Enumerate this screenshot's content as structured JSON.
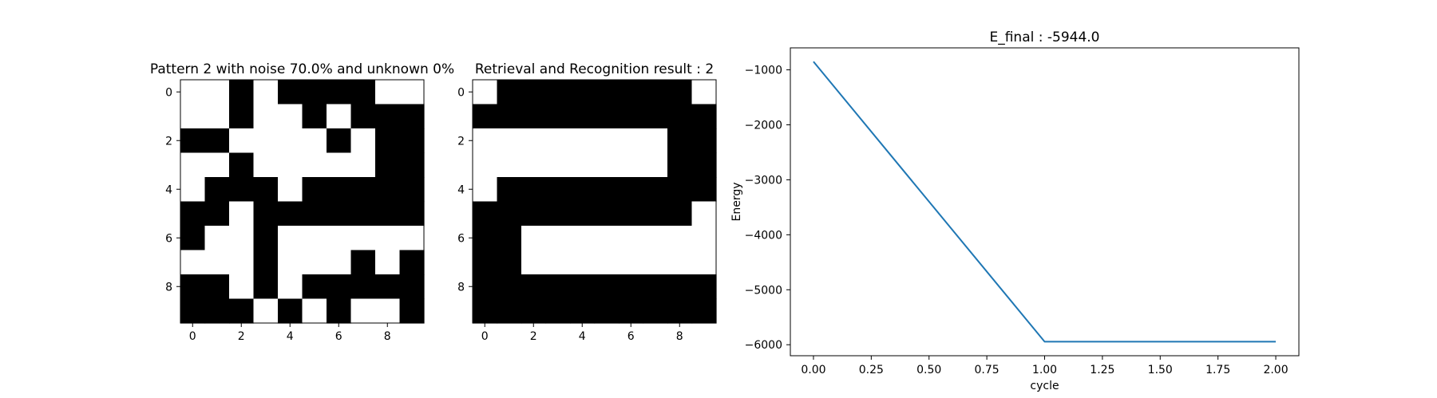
{
  "chart_data": [
    {
      "type": "heatmap",
      "title": "Pattern 2 with noise 70.0% and unknown 0%",
      "x_ticks": [
        0,
        2,
        4,
        6,
        8
      ],
      "y_ticks": [
        0,
        2,
        4,
        6,
        8
      ],
      "colormap": "gray",
      "cell_colors": {
        "1": "#ffffff",
        "0": "#000000"
      },
      "grid": [
        [
          1,
          1,
          0,
          1,
          0,
          0,
          0,
          0,
          1,
          1
        ],
        [
          1,
          1,
          0,
          1,
          1,
          0,
          1,
          0,
          0,
          0
        ],
        [
          0,
          0,
          1,
          1,
          1,
          1,
          0,
          1,
          0,
          0
        ],
        [
          1,
          1,
          0,
          1,
          1,
          1,
          1,
          1,
          0,
          0
        ],
        [
          1,
          0,
          0,
          0,
          1,
          0,
          0,
          0,
          0,
          0
        ],
        [
          0,
          0,
          1,
          0,
          0,
          0,
          0,
          0,
          0,
          0
        ],
        [
          0,
          1,
          1,
          0,
          1,
          1,
          1,
          1,
          1,
          1
        ],
        [
          1,
          1,
          1,
          0,
          1,
          1,
          1,
          0,
          1,
          0
        ],
        [
          0,
          0,
          1,
          0,
          1,
          0,
          0,
          0,
          0,
          0
        ],
        [
          0,
          0,
          0,
          1,
          0,
          1,
          0,
          1,
          1,
          0
        ]
      ]
    },
    {
      "type": "heatmap",
      "title": "Retrieval and Recognition result : 2",
      "x_ticks": [
        0,
        2,
        4,
        6,
        8
      ],
      "y_ticks": [
        0,
        2,
        4,
        6,
        8
      ],
      "colormap": "gray",
      "cell_colors": {
        "1": "#ffffff",
        "0": "#000000"
      },
      "grid": [
        [
          1,
          0,
          0,
          0,
          0,
          0,
          0,
          0,
          0,
          1
        ],
        [
          0,
          0,
          0,
          0,
          0,
          0,
          0,
          0,
          0,
          0
        ],
        [
          1,
          1,
          1,
          1,
          1,
          1,
          1,
          1,
          0,
          0
        ],
        [
          1,
          1,
          1,
          1,
          1,
          1,
          1,
          1,
          0,
          0
        ],
        [
          1,
          0,
          0,
          0,
          0,
          0,
          0,
          0,
          0,
          0
        ],
        [
          0,
          0,
          0,
          0,
          0,
          0,
          0,
          0,
          0,
          1
        ],
        [
          0,
          0,
          1,
          1,
          1,
          1,
          1,
          1,
          1,
          1
        ],
        [
          0,
          0,
          1,
          1,
          1,
          1,
          1,
          1,
          1,
          1
        ],
        [
          0,
          0,
          0,
          0,
          0,
          0,
          0,
          0,
          0,
          0
        ],
        [
          0,
          0,
          0,
          0,
          0,
          0,
          0,
          0,
          0,
          0
        ]
      ]
    },
    {
      "type": "line",
      "title": "E_final : -5944.0",
      "xlabel": "cycle",
      "ylabel": "Energy",
      "xlim": [
        -0.1,
        2.1
      ],
      "ylim": [
        -6200,
        -600
      ],
      "x_ticks": [
        0.0,
        0.25,
        0.5,
        0.75,
        1.0,
        1.25,
        1.5,
        1.75,
        2.0
      ],
      "x_tick_labels": [
        "0.00",
        "0.25",
        "0.50",
        "0.75",
        "1.00",
        "1.25",
        "1.50",
        "1.75",
        "2.00"
      ],
      "y_ticks": [
        -6000,
        -5000,
        -4000,
        -3000,
        -2000,
        -1000
      ],
      "y_tick_labels": [
        "−6000",
        "−5000",
        "−4000",
        "−3000",
        "−2000",
        "−1000"
      ],
      "series": [
        {
          "x": [
            0,
            1,
            2
          ],
          "values": [
            -850,
            -5944,
            -5944
          ],
          "color": "#1f77b4"
        }
      ],
      "grid": false
    }
  ]
}
